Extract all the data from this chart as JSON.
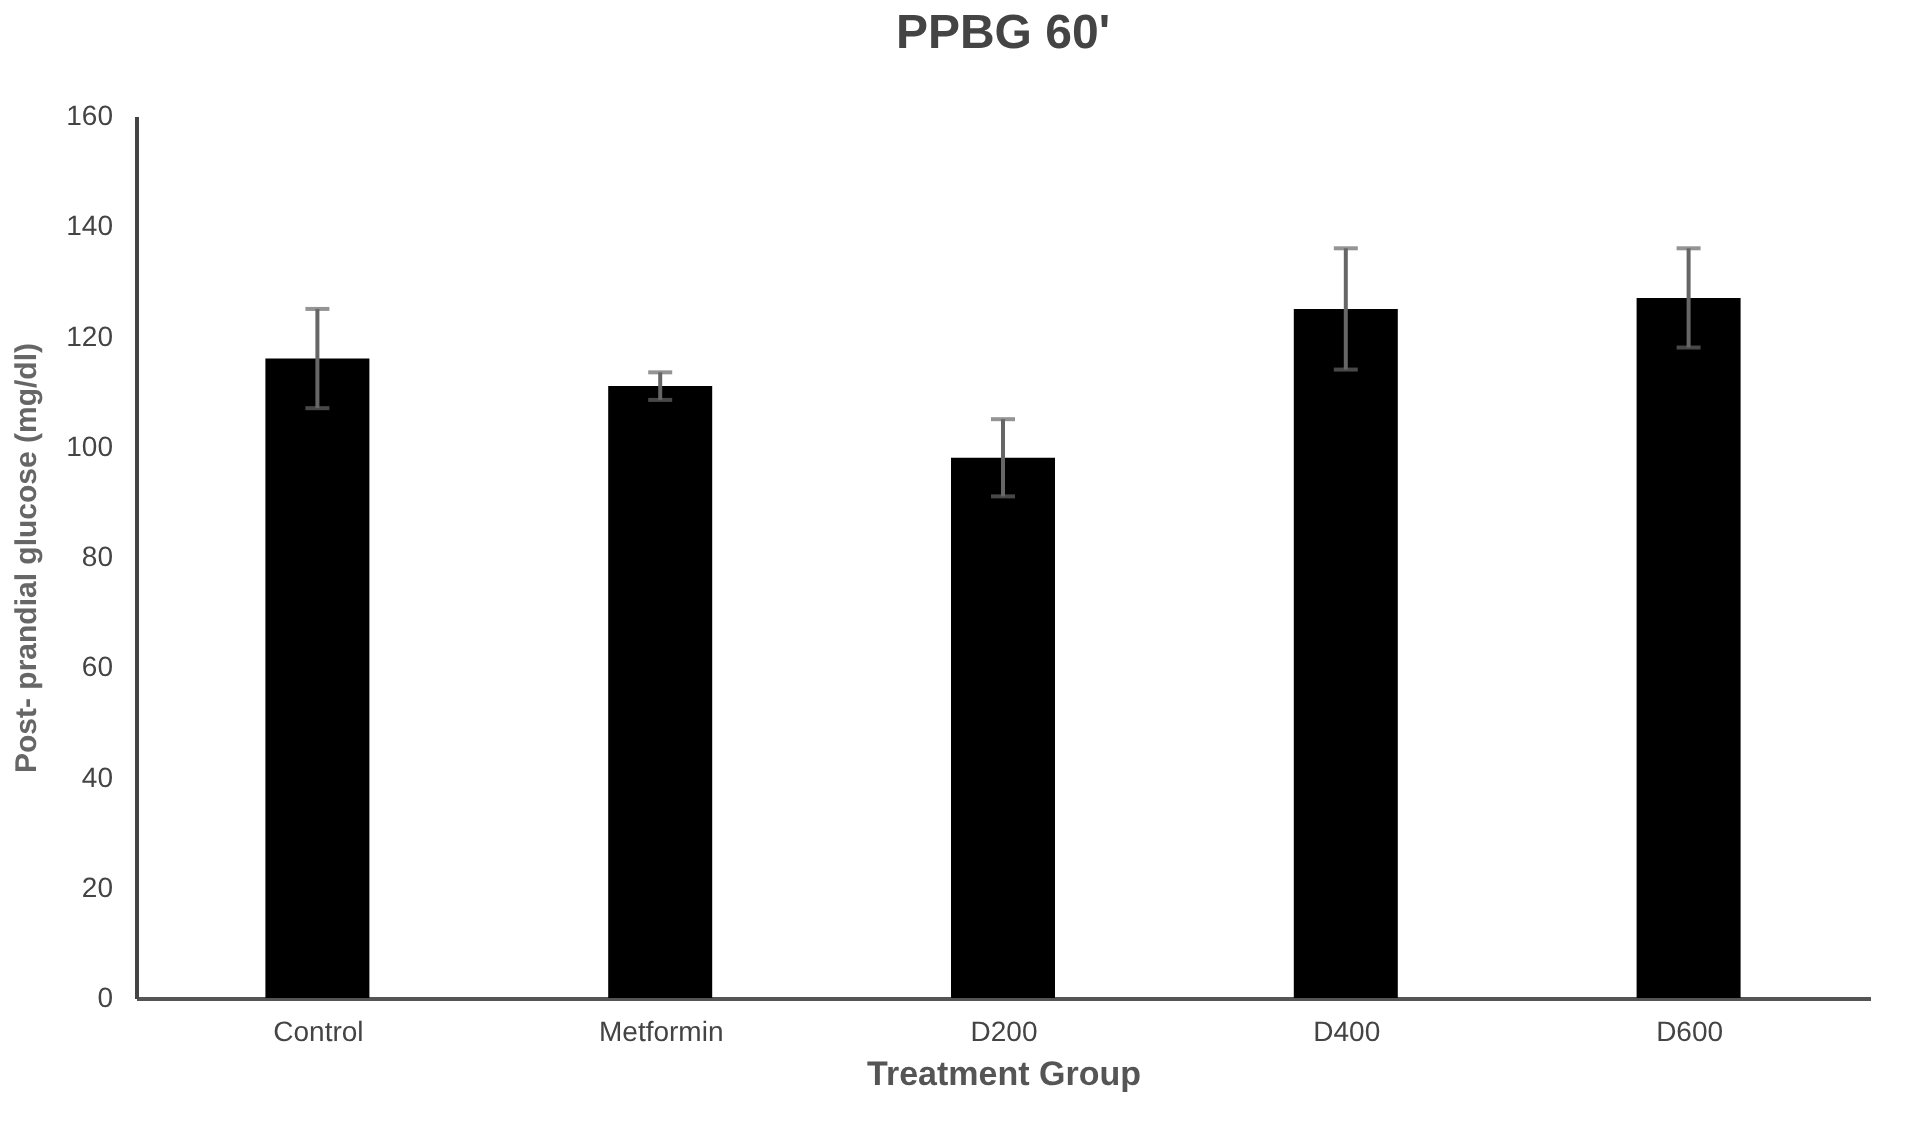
{
  "chart_data": {
    "type": "bar",
    "title": "PPBG 60'",
    "xlabel": "Treatment Group",
    "ylabel": "Post- prandial glucose (mg/dl)",
    "categories": [
      "Control",
      "Metformin",
      "D200",
      "D400",
      "D600"
    ],
    "values": [
      116,
      111,
      98,
      125,
      127
    ],
    "errors": [
      9,
      2.5,
      7,
      11,
      9
    ],
    "color": "#000000",
    "ylim": [
      0,
      160
    ],
    "yticks": [
      0,
      20,
      40,
      60,
      80,
      100,
      120,
      140,
      160
    ],
    "grid": false
  }
}
